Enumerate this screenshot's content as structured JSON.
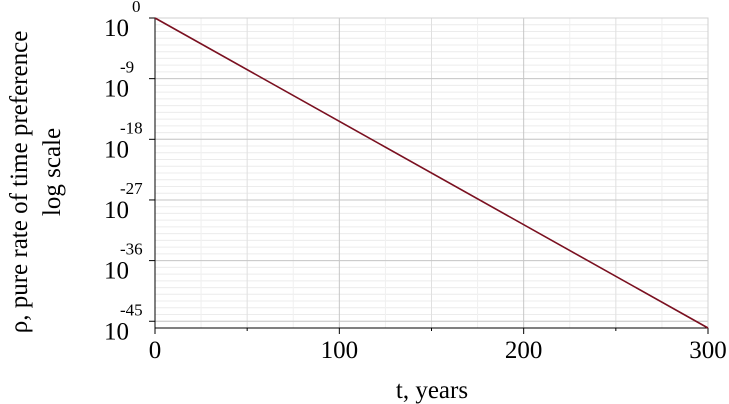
{
  "chart_data": {
    "type": "line",
    "y_scale": "log",
    "xlabel": "t,  years",
    "ylabel_line1": "ρ, pure rate of time preference",
    "ylabel_line2": "log scale",
    "xlim": [
      0,
      300
    ],
    "ylim": [
      1e-46,
      1
    ],
    "x_ticks": [
      {
        "value": 0,
        "label": "0"
      },
      {
        "value": 100,
        "label": "100"
      },
      {
        "value": 200,
        "label": "200"
      },
      {
        "value": 300,
        "label": "300"
      }
    ],
    "y_ticks": [
      {
        "exponent": 0,
        "base": "10",
        "power": "0"
      },
      {
        "exponent": -9,
        "base": "10",
        "power": "-9"
      },
      {
        "exponent": -18,
        "base": "10",
        "power": "-18"
      },
      {
        "exponent": -27,
        "base": "10",
        "power": "-27"
      },
      {
        "exponent": -36,
        "base": "10",
        "power": "-36"
      },
      {
        "exponent": -45,
        "base": "10",
        "power": "-45"
      }
    ],
    "grid": true,
    "series": [
      {
        "color": "#7a1020",
        "x": [
          0,
          300
        ],
        "y": [
          1,
          1e-46
        ]
      }
    ]
  }
}
